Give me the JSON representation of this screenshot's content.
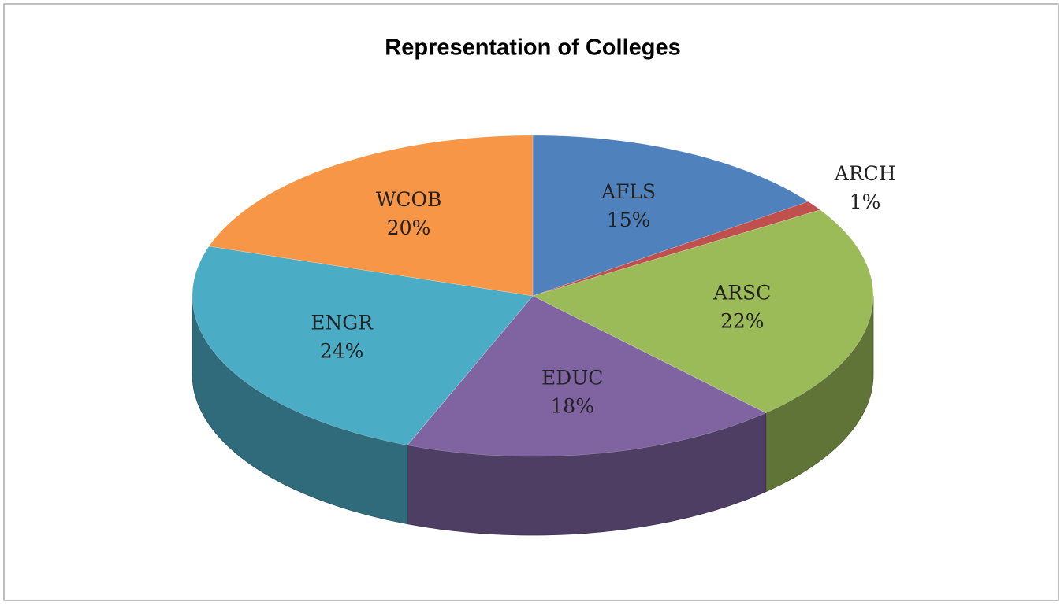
{
  "chart_data": {
    "type": "pie",
    "title": "Representation of Colleges",
    "categories": [
      "AFLS",
      "ARCH",
      "ARSC",
      "EDUC",
      "ENGR",
      "WCOB"
    ],
    "values": [
      15,
      1,
      22,
      18,
      24,
      20
    ],
    "value_labels": [
      "15%",
      "1%",
      "22%",
      "18%",
      "24%",
      "20%"
    ],
    "colors": [
      "#4f81bd",
      "#c0504d",
      "#9bbb59",
      "#8064a2",
      "#4bacc6",
      "#f79646"
    ]
  }
}
